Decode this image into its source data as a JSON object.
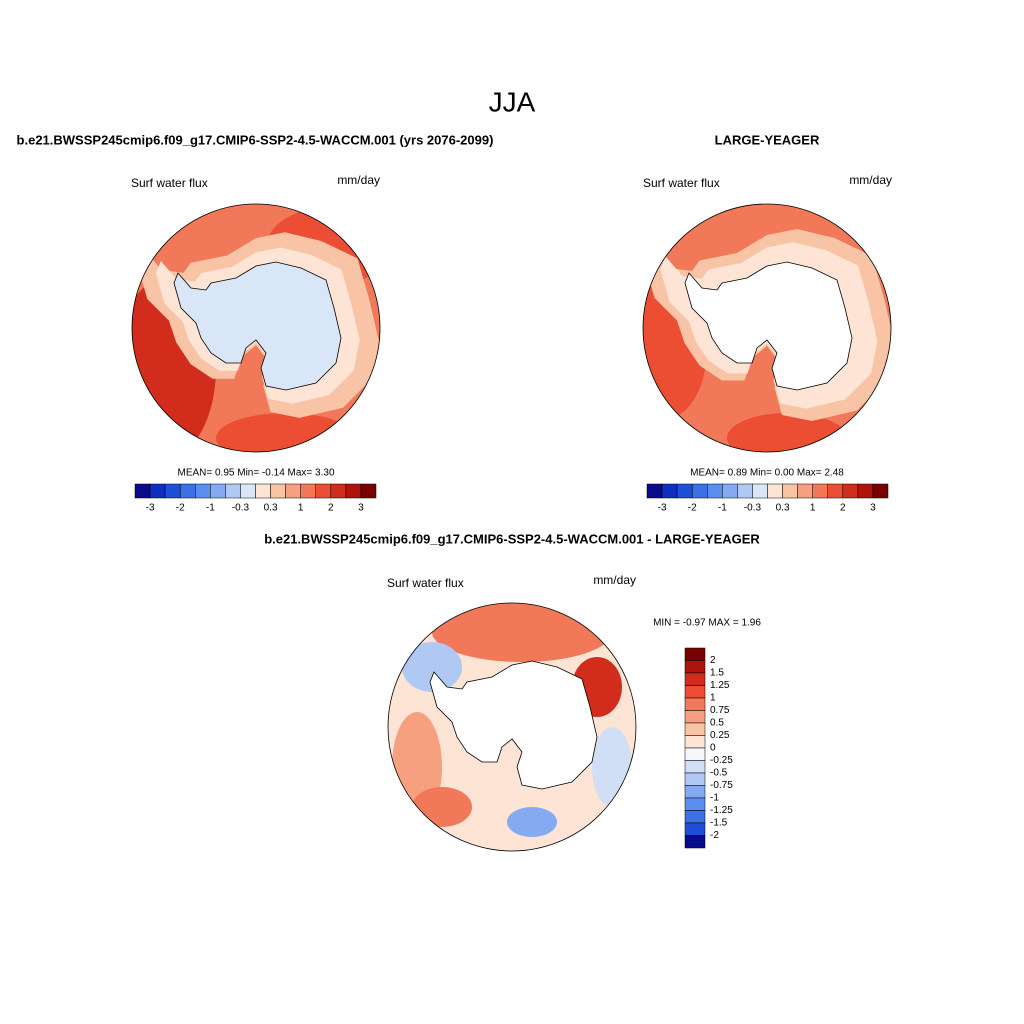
{
  "title": "JJA",
  "panels": [
    {
      "title": "b.e21.BWSSP245cmip6.f09_g17.CMIP6-SSP2-4.5-WACCM.001 (yrs 2076-2099)",
      "left_label": "Surf water flux",
      "right_label": "mm/day",
      "stats": "MEAN=  0.95  Min=  -0.14  Max=   3.30",
      "colorbar": {
        "labels": [
          "-3",
          "-2",
          "-1",
          "-0.3",
          "0.3",
          "1",
          "2",
          "3"
        ],
        "colors": [
          "#0a0a8c",
          "#0e2fbf",
          "#1f4fd8",
          "#3d6fe6",
          "#5c8ef0",
          "#86aaf2",
          "#afc8f4",
          "#d8e6f8",
          "#fde4d4",
          "#f9c4a6",
          "#f6a080",
          "#f2785a",
          "#ec4e33",
          "#d22c1d",
          "#ae130c",
          "#7a0000"
        ]
      }
    },
    {
      "title": "LARGE-YEAGER",
      "left_label": "Surf water flux",
      "right_label": "mm/day",
      "stats": "MEAN=  0.89  Min=  0.00  Max=  2.48",
      "colorbar": {
        "labels": [
          "-3",
          "-2",
          "-1",
          "-0.3",
          "0.3",
          "1",
          "2",
          "3"
        ],
        "colors": [
          "#0a0a8c",
          "#0e2fbf",
          "#1f4fd8",
          "#3d6fe6",
          "#5c8ef0",
          "#86aaf2",
          "#afc8f4",
          "#d8e6f8",
          "#fde4d4",
          "#f9c4a6",
          "#f6a080",
          "#f2785a",
          "#ec4e33",
          "#d22c1d",
          "#ae130c",
          "#7a0000"
        ]
      }
    },
    {
      "title": "b.e21.BWSSP245cmip6.f09_g17.CMIP6-SSP2-4.5-WACCM.001 - LARGE-YEAGER",
      "left_label": "Surf water flux",
      "right_label": "mm/day",
      "stats": "MIN =  -0.97 MAX =   1.96",
      "colorbar": {
        "labels": [
          "2",
          "1.5",
          "1.25",
          "1",
          "0.75",
          "0.5",
          "0.25",
          "0",
          "-0.25",
          "-0.5",
          "-0.75",
          "-1",
          "-1.25",
          "-1.5",
          "-2"
        ],
        "colors": [
          "#7a0000",
          "#ae130c",
          "#d22c1d",
          "#ec4e33",
          "#f2785a",
          "#f6a080",
          "#f9c4a6",
          "#fde4d4",
          "#f4f6fb",
          "#d0def6",
          "#afc8f4",
          "#86aaf2",
          "#5c8ef0",
          "#3d6fe6",
          "#1f4fd8",
          "#0a0a8c"
        ]
      }
    }
  ]
}
